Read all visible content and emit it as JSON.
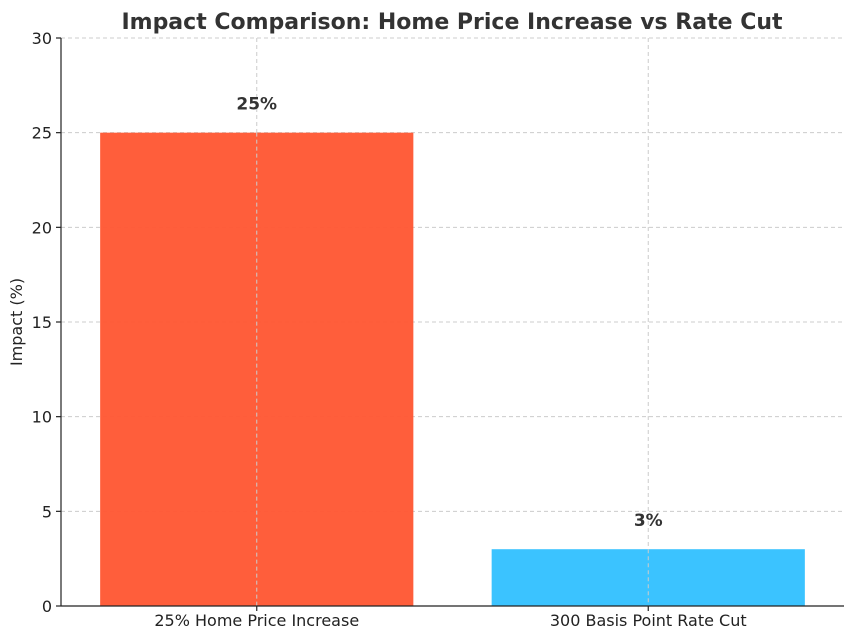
{
  "chart_data": {
    "type": "bar",
    "title": "Impact Comparison: Home Price Increase vs Rate Cut",
    "xlabel": "",
    "ylabel": "Impact (%)",
    "categories": [
      "25% Home Price Increase",
      "300 Basis Point Rate Cut"
    ],
    "values": [
      25,
      3
    ],
    "data_labels": [
      "25%",
      "3%"
    ],
    "colors": [
      "#FF5733",
      "#33C1FF"
    ],
    "ylim": [
      0,
      30
    ],
    "yticks": [
      0,
      5,
      10,
      15,
      20,
      25,
      30
    ],
    "grid": true,
    "legend": "none"
  }
}
